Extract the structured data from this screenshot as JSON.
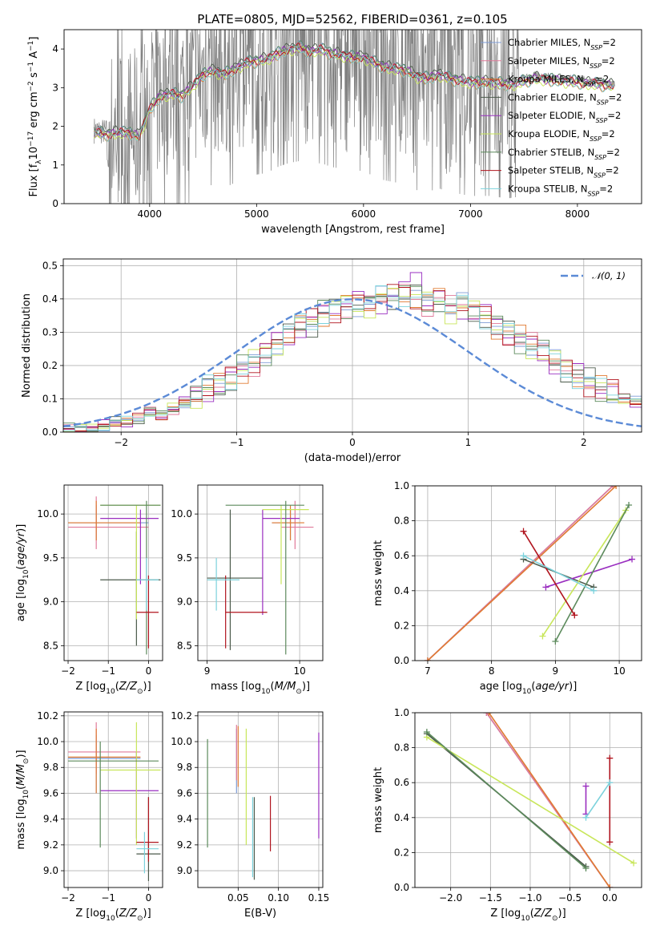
{
  "figure": {
    "title": "PLATE=0805, MJD=52562, FIBERID=0361, z=0.105"
  },
  "colors": {
    "Chabrier MILES": "#7d9bd6",
    "Salpeter MILES": "#e07a9a",
    "Kroupa MILES": "#e07a32",
    "Chabrier ELODIE": "#4b5a4b",
    "Salpeter ELODIE": "#9a2fc0",
    "Kroupa ELODIE": "#c8e65a",
    "Chabrier STELIB": "#5c8a5c",
    "Salpeter STELIB": "#b0141e",
    "Kroupa STELIB": "#7cd2dc",
    "data": "#808080",
    "normal": "#5b8ad6"
  },
  "chart_data": [
    {
      "id": "spectrum",
      "type": "line",
      "xlabel": "wavelength [Angstrom, rest frame]",
      "ylabel": "Flux [f$_\\lambda$10$^{-17}$ erg cm$^{-2}$ s$^{-1}$ A$^{-1}$]",
      "ylabel_text": "Flux [fλ10⁻¹⁷ erg cm⁻² s⁻¹ A⁻¹]",
      "xlim": [
        3200,
        8600
      ],
      "ylim": [
        0,
        4.5
      ],
      "xticks": [
        4000,
        5000,
        6000,
        7000,
        8000
      ],
      "yticks": [
        0,
        1,
        2,
        3,
        4
      ],
      "legend": [
        "Chabrier MILES, N$_{SSP}$=2",
        "Salpeter MILES, N$_{SSP}$=2",
        "Kroupa MILES, N$_{SSP}$=2",
        "Chabrier ELODIE, N$_{SSP}$=2",
        "Salpeter ELODIE, N$_{SSP}$=2",
        "Kroupa ELODIE, N$_{SSP}$=2",
        "Chabrier STELIB, N$_{SSP}$=2",
        "Salpeter STELIB, N$_{SSP}$=2",
        "Kroupa STELIB, N$_{SSP}$=2"
      ],
      "legend_names": [
        "Chabrier MILES",
        "Salpeter MILES",
        "Kroupa MILES",
        "Chabrier ELODIE",
        "Salpeter ELODIE",
        "Kroupa ELODIE",
        "Chabrier STELIB",
        "Salpeter STELIB",
        "Kroupa STELIB"
      ],
      "legend_suffix": ", N",
      "legend_sub": "SSP",
      "legend_tail": "=2",
      "legend_placement": "upper right",
      "model_continuum": {
        "x": [
          3480,
          3600,
          3700,
          3800,
          3900,
          4000,
          4100,
          4200,
          4300,
          4400,
          4500,
          4600,
          4700,
          4800,
          4900,
          5000,
          5100,
          5200,
          5300,
          5400,
          5500,
          5600,
          5700,
          5800,
          5900,
          6000,
          6100,
          6200,
          6300,
          6400,
          6500,
          6600,
          6700,
          6800,
          6900,
          7000,
          7100,
          7200,
          7300,
          7400,
          7600,
          7800,
          8000,
          8200,
          8350
        ],
        "y": [
          1.9,
          1.85,
          1.9,
          1.9,
          1.8,
          2.5,
          2.85,
          2.9,
          2.85,
          3.1,
          3.4,
          3.5,
          3.4,
          3.55,
          3.7,
          3.75,
          3.8,
          3.95,
          4.05,
          4.1,
          4.0,
          4.05,
          3.95,
          3.9,
          3.85,
          3.85,
          3.7,
          3.6,
          3.55,
          3.5,
          3.35,
          3.3,
          3.4,
          3.3,
          3.25,
          3.2,
          3.2,
          3.2,
          3.15,
          3.15,
          3.3,
          3.25,
          3.2,
          3.15,
          3.1
        ]
      }
    },
    {
      "id": "residuals",
      "type": "histogram",
      "xlabel": "(data-model)/error",
      "ylabel": "Normed distribution",
      "xlim": [
        -2.5,
        2.5
      ],
      "ylim": [
        0,
        0.52
      ],
      "xticks": [
        -2,
        -1,
        0,
        1,
        2
      ],
      "yticks": [
        0.0,
        0.1,
        0.2,
        0.3,
        0.4,
        0.5
      ],
      "legend": [
        "$\\mathcal{N}(0,1)$"
      ],
      "legend_text": "𝒩(0, 1)",
      "legend_placement": "upper right",
      "bin_width": 0.1,
      "reference_heights": [
        0.01,
        0.01,
        0.01,
        0.02,
        0.03,
        0.03,
        0.04,
        0.06,
        0.05,
        0.07,
        0.09,
        0.11,
        0.13,
        0.14,
        0.16,
        0.19,
        0.21,
        0.24,
        0.27,
        0.29,
        0.32,
        0.33,
        0.36,
        0.37,
        0.38,
        0.39,
        0.38,
        0.4,
        0.41,
        0.42,
        0.41,
        0.39,
        0.4,
        0.37,
        0.38,
        0.36,
        0.35,
        0.32,
        0.3,
        0.28,
        0.26,
        0.24,
        0.21,
        0.19,
        0.17,
        0.15,
        0.13,
        0.12,
        0.1,
        0.09,
        0.08,
        0.07,
        0.06,
        0.05,
        0.04,
        0.03,
        0.03,
        0.02,
        0.02,
        0.02
      ]
    },
    {
      "id": "age-vs-Z",
      "type": "errorbar",
      "xlabel": "Z [log$_{10}$(Z/Z$_\\odot$)]",
      "ylabel": "age [log$_{10}$(age/yr)]",
      "xlim": [
        -2.1,
        0.35
      ],
      "ylim": [
        8.33,
        10.33
      ],
      "xticks": [
        -2,
        -1,
        0
      ],
      "yticks": [
        8.5,
        9.0,
        9.5,
        10.0
      ],
      "points": [
        {
          "m": "Chabrier MILES",
          "x": -1.3,
          "xe": [
            -2.0,
            0.0
          ],
          "y": 9.9,
          "ye": [
            9.7,
            10.1
          ]
        },
        {
          "m": "Salpeter MILES",
          "x": -1.3,
          "xe": [
            -2.0,
            0.0
          ],
          "y": 9.85,
          "ye": [
            9.6,
            10.2
          ]
        },
        {
          "m": "Kroupa MILES",
          "x": -1.3,
          "xe": [
            -2.0,
            -0.2
          ],
          "y": 9.9,
          "ye": [
            9.7,
            10.15
          ]
        },
        {
          "m": "Chabrier ELODIE",
          "x": -0.3,
          "xe": [
            -1.2,
            0.3
          ],
          "y": 9.25,
          "ye": [
            8.5,
            9.8
          ]
        },
        {
          "m": "Salpeter ELODIE",
          "x": -0.2,
          "xe": [
            -1.2,
            0.25
          ],
          "y": 9.95,
          "ye": [
            9.2,
            10.05
          ]
        },
        {
          "m": "Kroupa ELODIE",
          "x": -0.3,
          "xe": [
            -1.2,
            0.3
          ],
          "y": 10.1,
          "ye": [
            8.8,
            10.1
          ]
        },
        {
          "m": "Chabrier STELIB",
          "x": -0.05,
          "xe": [
            -1.2,
            0.3
          ],
          "y": 10.1,
          "ye": [
            8.4,
            10.15
          ]
        },
        {
          "m": "Salpeter STELIB",
          "x": 0.0,
          "xe": [
            -0.3,
            0.25
          ],
          "y": 8.88,
          "ye": [
            8.47,
            9.3
          ]
        },
        {
          "m": "Kroupa STELIB",
          "x": -0.05,
          "xe": [
            -0.3,
            0.25
          ],
          "y": 9.25,
          "ye": [
            8.9,
            9.5
          ]
        }
      ]
    },
    {
      "id": "age-vs-mass",
      "type": "errorbar",
      "xlabel": "mass [log$_{10}$(M/M$_\\odot$)]",
      "ylabel": "",
      "xlim": [
        8.9,
        10.25
      ],
      "ylim": [
        8.33,
        10.33
      ],
      "xticks": [
        9,
        10
      ],
      "yticks": [
        8.5,
        9.0,
        9.5,
        10.0
      ],
      "points": [
        {
          "m": "Chabrier MILES",
          "x": 9.9,
          "xe": [
            9.7,
            10.0
          ],
          "y": 9.9,
          "ye": [
            9.7,
            10.05
          ]
        },
        {
          "m": "Salpeter MILES",
          "x": 9.95,
          "xe": [
            9.8,
            10.15
          ],
          "y": 9.85,
          "ye": [
            9.6,
            10.15
          ]
        },
        {
          "m": "Kroupa MILES",
          "x": 9.9,
          "xe": [
            9.7,
            10.05
          ],
          "y": 9.9,
          "ye": [
            9.7,
            10.1
          ]
        },
        {
          "m": "Chabrier ELODIE",
          "x": 9.25,
          "xe": [
            9.0,
            9.6
          ],
          "y": 9.27,
          "ye": [
            8.45,
            10.05
          ]
        },
        {
          "m": "Salpeter ELODIE",
          "x": 9.6,
          "xe": [
            9.6,
            10.0
          ],
          "y": 9.95,
          "ye": [
            8.85,
            10.05
          ]
        },
        {
          "m": "Kroupa ELODIE",
          "x": 9.8,
          "xe": [
            9.6,
            10.1
          ],
          "y": 10.05,
          "ye": [
            9.2,
            10.1
          ]
        },
        {
          "m": "Chabrier STELIB",
          "x": 9.85,
          "xe": [
            9.2,
            10.05
          ],
          "y": 10.1,
          "ye": [
            8.4,
            10.15
          ]
        },
        {
          "m": "Salpeter STELIB",
          "x": 9.2,
          "xe": [
            9.2,
            9.65
          ],
          "y": 8.88,
          "ye": [
            8.47,
            9.3
          ]
        },
        {
          "m": "Kroupa STELIB",
          "x": 9.1,
          "xe": [
            9.0,
            9.35
          ],
          "y": 9.25,
          "ye": [
            8.9,
            9.5
          ]
        }
      ]
    },
    {
      "id": "weight-vs-age",
      "type": "line",
      "xlabel": "age [log$_{10}$(age/yr)]",
      "ylabel": "mass weight",
      "xlim": [
        6.8,
        10.35
      ],
      "ylim": [
        0,
        1.0
      ],
      "xticks": [
        7,
        8,
        9,
        10
      ],
      "yticks": [
        0.0,
        0.2,
        0.4,
        0.6,
        0.8,
        1.0
      ],
      "series": [
        {
          "m": "Chabrier MILES",
          "x": [
            7.0,
            9.9
          ],
          "y": [
            0.0,
            1.0
          ]
        },
        {
          "m": "Salpeter MILES",
          "x": [
            7.0,
            9.9
          ],
          "y": [
            0.0,
            1.0
          ]
        },
        {
          "m": "Kroupa MILES",
          "x": [
            7.0,
            9.95
          ],
          "y": [
            0.0,
            1.0
          ]
        },
        {
          "m": "Chabrier ELODIE",
          "x": [
            8.5,
            9.6
          ],
          "y": [
            0.58,
            0.42
          ]
        },
        {
          "m": "Salpeter ELODIE",
          "x": [
            8.85,
            10.2
          ],
          "y": [
            0.42,
            0.58
          ]
        },
        {
          "m": "Kroupa ELODIE",
          "x": [
            8.8,
            10.1
          ],
          "y": [
            0.14,
            0.86
          ]
        },
        {
          "m": "Chabrier STELIB",
          "x": [
            9.0,
            10.15
          ],
          "y": [
            0.11,
            0.89
          ]
        },
        {
          "m": "Salpeter STELIB",
          "x": [
            8.5,
            9.3
          ],
          "y": [
            0.74,
            0.26
          ]
        },
        {
          "m": "Kroupa STELIB",
          "x": [
            8.5,
            9.6
          ],
          "y": [
            0.6,
            0.4
          ]
        }
      ]
    },
    {
      "id": "mass-vs-Z",
      "type": "errorbar",
      "xlabel": "Z [log$_{10}$(Z/Z$_\\odot$)]",
      "ylabel": "mass [log$_{10}$(M/M$_\\odot$)]",
      "xlim": [
        -2.1,
        0.35
      ],
      "ylim": [
        8.87,
        10.23
      ],
      "xticks": [
        -2,
        -1,
        0
      ],
      "yticks": [
        9.0,
        9.2,
        9.4,
        9.6,
        9.8,
        10.0,
        10.2
      ],
      "points": [
        {
          "m": "Chabrier MILES",
          "x": -1.3,
          "xe": [
            -2.0,
            -0.2
          ],
          "y": 9.87,
          "ye": [
            9.6,
            10.05
          ]
        },
        {
          "m": "Salpeter MILES",
          "x": -1.3,
          "xe": [
            -2.0,
            -0.2
          ],
          "y": 9.92,
          "ye": [
            9.75,
            10.15
          ]
        },
        {
          "m": "Kroupa MILES",
          "x": -1.3,
          "xe": [
            -2.0,
            -0.2
          ],
          "y": 9.88,
          "ye": [
            9.6,
            10.1
          ]
        },
        {
          "m": "Chabrier ELODIE",
          "x": 0.0,
          "xe": [
            -0.3,
            0.3
          ],
          "y": 9.13,
          "ye": [
            8.92,
            9.57
          ]
        },
        {
          "m": "Salpeter ELODIE",
          "x": -0.3,
          "xe": [
            -1.2,
            0.25
          ],
          "y": 9.62,
          "ye": [
            9.25,
            9.92
          ]
        },
        {
          "m": "Kroupa ELODIE",
          "x": -0.3,
          "xe": [
            -1.2,
            0.3
          ],
          "y": 9.78,
          "ye": [
            9.2,
            10.15
          ]
        },
        {
          "m": "Chabrier STELIB",
          "x": -1.2,
          "xe": [
            -2.0,
            0.25
          ],
          "y": 9.85,
          "ye": [
            9.18,
            10.0
          ]
        },
        {
          "m": "Salpeter STELIB",
          "x": 0.0,
          "xe": [
            -0.3,
            0.25
          ],
          "y": 9.22,
          "ye": [
            9.07,
            9.57
          ]
        },
        {
          "m": "Kroupa STELIB",
          "x": -0.1,
          "xe": [
            -0.3,
            0.25
          ],
          "y": 9.17,
          "ye": [
            8.98,
            9.3
          ]
        }
      ]
    },
    {
      "id": "mass-vs-EBV",
      "type": "errorbar",
      "xlabel": "E(B-V)",
      "ylabel": "",
      "xlim": [
        0.0,
        0.155
      ],
      "ylim": [
        8.87,
        10.23
      ],
      "xticks": [
        0.05,
        0.1,
        0.15
      ],
      "xticklabels": [
        "0.05",
        "0.10",
        "0.15"
      ],
      "yticks": [
        9.0,
        9.2,
        9.4,
        9.6,
        9.8,
        10.0,
        10.2
      ],
      "points": [
        {
          "m": "Chabrier MILES",
          "x": 0.048,
          "y": 9.87,
          "ye": [
            9.6,
            10.1
          ]
        },
        {
          "m": "Salpeter MILES",
          "x": 0.048,
          "y": 9.92,
          "ye": [
            9.7,
            10.13
          ]
        },
        {
          "m": "Kroupa MILES",
          "x": 0.05,
          "y": 9.88,
          "ye": [
            9.65,
            10.12
          ]
        },
        {
          "m": "Chabrier ELODIE",
          "x": 0.07,
          "y": 9.13,
          "ye": [
            8.93,
            9.57
          ]
        },
        {
          "m": "Salpeter ELODIE",
          "x": 0.15,
          "y": 9.62,
          "ye": [
            9.25,
            10.07
          ]
        },
        {
          "m": "Kroupa ELODIE",
          "x": 0.06,
          "y": 9.78,
          "ye": [
            9.2,
            10.1
          ]
        },
        {
          "m": "Chabrier STELIB",
          "x": 0.012,
          "y": 9.6,
          "ye": [
            9.18,
            10.02
          ]
        },
        {
          "m": "Salpeter STELIB",
          "x": 0.09,
          "y": 9.35,
          "ye": [
            9.15,
            9.58
          ]
        },
        {
          "m": "Kroupa STELIB",
          "x": 0.068,
          "y": 9.2,
          "ye": [
            8.95,
            9.57
          ]
        }
      ]
    },
    {
      "id": "weight-vs-Z",
      "type": "line",
      "xlabel": "Z [log$_{10}$(Z/Z$_\\odot$)]",
      "ylabel": "mass weight",
      "xlim": [
        -2.45,
        0.4
      ],
      "ylim": [
        0,
        1.0
      ],
      "xticks": [
        -2.0,
        -1.5,
        -1.0,
        -0.5,
        0.0
      ],
      "xticklabels": [
        "−2.0",
        "−1.5",
        "−1.0",
        "−0.5",
        "0.0"
      ],
      "yticks": [
        0.0,
        0.2,
        0.4,
        0.6,
        0.8,
        1.0
      ],
      "series": [
        {
          "m": "Chabrier MILES",
          "x": [
            -1.55,
            0.0
          ],
          "y": [
            1.0,
            0.0
          ]
        },
        {
          "m": "Salpeter MILES",
          "x": [
            -1.55,
            0.0
          ],
          "y": [
            1.0,
            0.0
          ]
        },
        {
          "m": "Kroupa MILES",
          "x": [
            -1.52,
            0.0
          ],
          "y": [
            1.0,
            0.0
          ]
        },
        {
          "m": "Chabrier ELODIE",
          "x": [
            -2.3,
            -0.3
          ],
          "y": [
            0.88,
            0.12
          ]
        },
        {
          "m": "Salpeter ELODIE",
          "x": [
            -0.3,
            -0.3
          ],
          "y": [
            0.42,
            0.58
          ]
        },
        {
          "m": "Kroupa ELODIE",
          "x": [
            -2.3,
            0.3
          ],
          "y": [
            0.86,
            0.14
          ]
        },
        {
          "m": "Chabrier STELIB",
          "x": [
            -2.3,
            -0.3
          ],
          "y": [
            0.89,
            0.11
          ]
        },
        {
          "m": "Salpeter STELIB",
          "x": [
            0.0,
            0.0
          ],
          "y": [
            0.74,
            0.26
          ]
        },
        {
          "m": "Kroupa STELIB",
          "x": [
            -0.3,
            0.0
          ],
          "y": [
            0.4,
            0.6
          ]
        }
      ]
    }
  ]
}
